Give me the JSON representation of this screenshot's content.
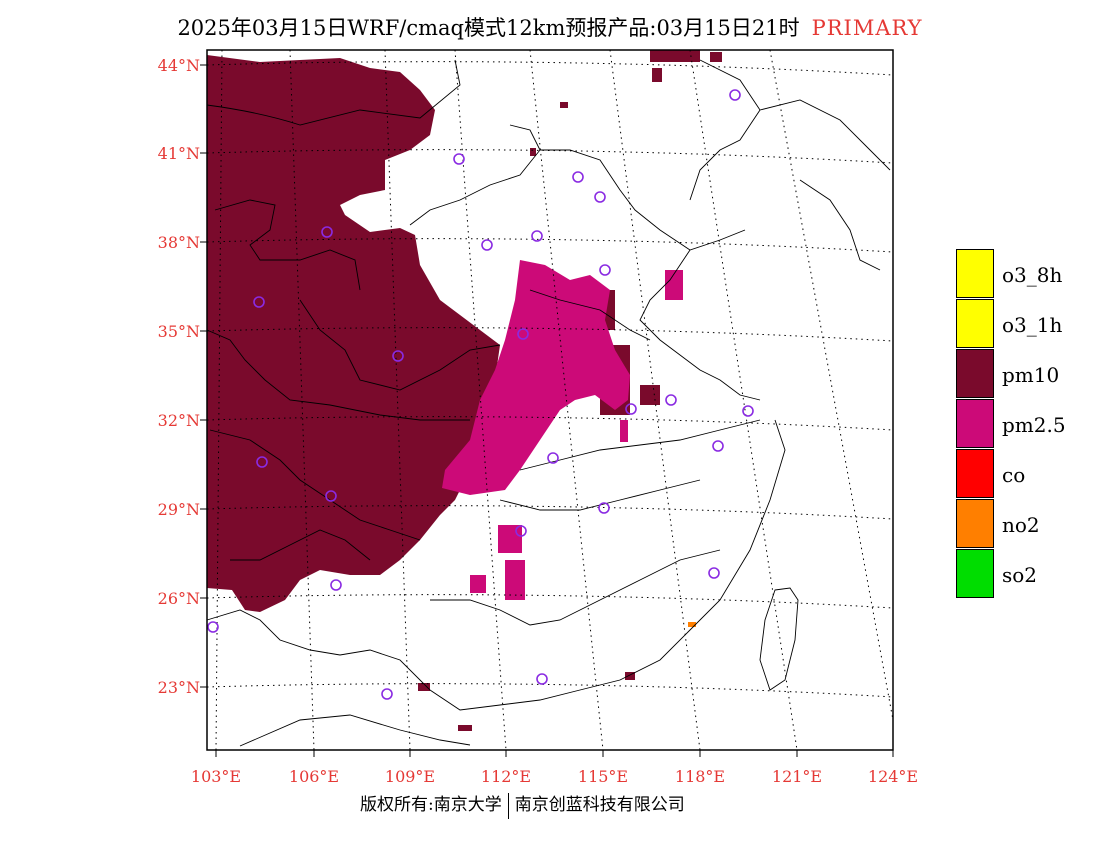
{
  "title": {
    "main": "2025年03月15日WRF/cmaq模式12km预报产品:03月15日21时",
    "tag": "PRIMARY"
  },
  "axes": {
    "lat_labels": [
      "44°N",
      "41°N",
      "38°N",
      "35°N",
      "32°N",
      "29°N",
      "26°N",
      "23°N"
    ],
    "lon_labels": [
      "103°E",
      "106°E",
      "109°E",
      "112°E",
      "115°E",
      "118°E",
      "121°E",
      "124°E"
    ]
  },
  "legend": [
    {
      "label": "o3_8h",
      "color": "#ffff00"
    },
    {
      "label": "o3_1h",
      "color": "#ffff00"
    },
    {
      "label": "pm10",
      "color": "#7a0a2c"
    },
    {
      "label": "pm2.5",
      "color": "#cc0a78"
    },
    {
      "label": "co",
      "color": "#ff0000"
    },
    {
      "label": "no2",
      "color": "#ff7f00"
    },
    {
      "label": "so2",
      "color": "#00dd00"
    }
  ],
  "colors": {
    "pm10": "#7a0a2c",
    "pm25": "#cc0a78",
    "station": "#8a2be2",
    "axis_label": "#e53935"
  },
  "footer": {
    "left": "版权所有:南京大学",
    "right": "南京创蓝科技有限公司"
  }
}
